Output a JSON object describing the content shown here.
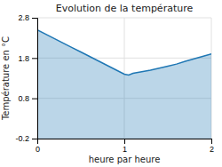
{
  "chart_data": {
    "type": "area",
    "title": "Evolution de la température",
    "xlabel": "heure par heure",
    "ylabel": "Température en °C",
    "x": [
      0,
      0.1,
      0.2,
      0.3,
      0.4,
      0.5,
      0.6,
      0.7,
      0.8,
      0.9,
      1.0,
      1.05,
      1.1,
      1.2,
      1.3,
      1.4,
      1.5,
      1.6,
      1.7,
      1.8,
      1.9,
      2.0
    ],
    "values": [
      2.5,
      2.39,
      2.28,
      2.17,
      2.06,
      1.95,
      1.84,
      1.73,
      1.62,
      1.51,
      1.4,
      1.38,
      1.42,
      1.46,
      1.5,
      1.55,
      1.6,
      1.65,
      1.72,
      1.78,
      1.84,
      1.9
    ],
    "xlim": [
      0,
      2
    ],
    "ylim": [
      -0.2,
      2.8
    ],
    "xticks": [
      0,
      1,
      2
    ],
    "yticks": [
      -0.2,
      0.8,
      1.8,
      2.8
    ],
    "grid": true
  }
}
